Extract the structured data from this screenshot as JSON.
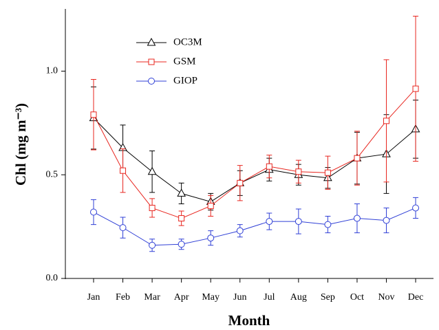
{
  "chart_data": {
    "type": "line",
    "x_label": "Month",
    "y_label": "Chl (mg m⁻³)",
    "categories": [
      "Jan",
      "Feb",
      "Mar",
      "Apr",
      "May",
      "Jun",
      "Jul",
      "Aug",
      "Sep",
      "Oct",
      "Nov",
      "Dec"
    ],
    "series": [
      {
        "name": "OC3M",
        "color": "#000000",
        "marker": "triangle",
        "values": [
          0.774,
          0.63,
          0.515,
          0.41,
          0.37,
          0.46,
          0.525,
          0.5,
          0.485,
          0.58,
          0.6,
          0.72
        ],
        "errors": [
          0.15,
          0.11,
          0.1,
          0.05,
          0.04,
          0.06,
          0.055,
          0.05,
          0.05,
          0.125,
          0.19,
          0.14
        ]
      },
      {
        "name": "GSM",
        "color": "#e8251e",
        "marker": "square",
        "values": [
          0.79,
          0.52,
          0.34,
          0.29,
          0.35,
          0.46,
          0.54,
          0.515,
          0.51,
          0.58,
          0.76,
          0.915
        ],
        "errors": [
          0.17,
          0.105,
          0.045,
          0.035,
          0.05,
          0.085,
          0.055,
          0.055,
          0.08,
          0.13,
          0.295,
          0.35
        ]
      },
      {
        "name": "GIOP",
        "color": "#2f3fd6",
        "marker": "circle",
        "values": [
          0.32,
          0.245,
          0.16,
          0.165,
          0.195,
          0.23,
          0.275,
          0.275,
          0.26,
          0.29,
          0.28,
          0.34
        ],
        "errors": [
          0.06,
          0.05,
          0.03,
          0.025,
          0.035,
          0.03,
          0.04,
          0.06,
          0.04,
          0.07,
          0.06,
          0.05
        ]
      }
    ],
    "ylim": [
      0,
      1.3
    ],
    "yticks": [
      {
        "value": 0,
        "label": "0.0"
      },
      0.5,
      {
        "value": 1,
        "label": "1.0"
      }
    ],
    "legend": "upper left",
    "grid": false
  }
}
